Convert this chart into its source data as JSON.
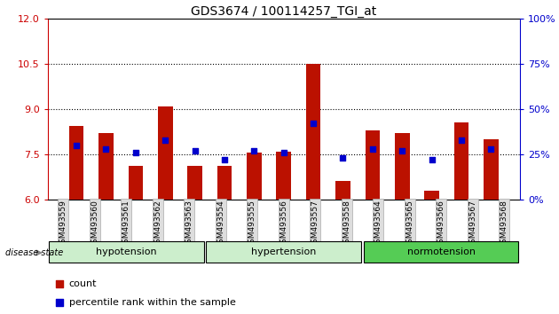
{
  "title": "GDS3674 / 100114257_TGI_at",
  "samples": [
    "GSM493559",
    "GSM493560",
    "GSM493561",
    "GSM493562",
    "GSM493563",
    "GSM493554",
    "GSM493555",
    "GSM493556",
    "GSM493557",
    "GSM493558",
    "GSM493564",
    "GSM493565",
    "GSM493566",
    "GSM493567",
    "GSM493568"
  ],
  "count_values": [
    8.45,
    8.2,
    7.1,
    9.1,
    7.1,
    7.1,
    7.55,
    7.6,
    10.5,
    6.6,
    8.3,
    8.2,
    6.3,
    8.55,
    8.0
  ],
  "percentile_values": [
    30,
    28,
    26,
    33,
    27,
    22,
    27,
    26,
    42,
    23,
    28,
    27,
    22,
    33,
    28
  ],
  "ylim_left": [
    6,
    12
  ],
  "ylim_right": [
    0,
    100
  ],
  "yticks_left": [
    6,
    7.5,
    9,
    10.5,
    12
  ],
  "yticks_right": [
    0,
    25,
    50,
    75,
    100
  ],
  "bar_color": "#BB1100",
  "dot_color": "#0000CC",
  "bar_width": 0.5,
  "background_color": "#ffffff",
  "label_color_left": "#CC0000",
  "label_color_right": "#0000CC",
  "legend_count": "count",
  "legend_percentile": "percentile rank within the sample",
  "disease_state_label": "disease state",
  "group_info": [
    {
      "start": 0,
      "end": 5,
      "label": "hypotension",
      "color": "#CCEECC"
    },
    {
      "start": 5,
      "end": 10,
      "label": "hypertension",
      "color": "#CCEECC"
    },
    {
      "start": 10,
      "end": 15,
      "label": "normotension",
      "color": "#55CC55"
    }
  ],
  "hgrid_values": [
    7.5,
    9.0,
    10.5
  ],
  "xtick_bg": "#DDDDDD"
}
